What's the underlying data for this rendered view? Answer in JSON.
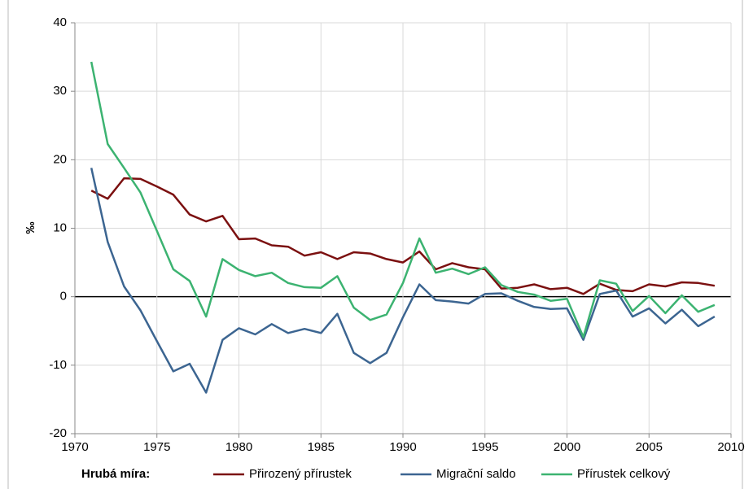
{
  "chart_data": {
    "type": "line",
    "y_label": "‰",
    "legend_title": "Hrubá míra:",
    "x": [
      1971,
      1972,
      1973,
      1974,
      1975,
      1976,
      1977,
      1978,
      1979,
      1980,
      1981,
      1982,
      1983,
      1984,
      1985,
      1986,
      1987,
      1988,
      1989,
      1990,
      1991,
      1992,
      1993,
      1994,
      1995,
      1996,
      1997,
      1998,
      1999,
      2000,
      2001,
      2002,
      2003,
      2004,
      2005,
      2006,
      2007,
      2008,
      2009
    ],
    "series": [
      {
        "name": "Přirozený přírustek",
        "color": "#7b1010",
        "values": [
          15.5,
          14.3,
          17.3,
          17.2,
          16.1,
          14.9,
          12.0,
          11.0,
          11.8,
          8.4,
          8.5,
          7.5,
          7.3,
          6.0,
          6.5,
          5.5,
          6.5,
          6.3,
          5.5,
          5.0,
          6.6,
          4.0,
          4.9,
          4.3,
          4.0,
          1.2,
          1.3,
          1.8,
          1.1,
          1.3,
          0.4,
          1.9,
          1.0,
          0.8,
          1.8,
          1.5,
          2.1,
          2.0,
          1.6
        ]
      },
      {
        "name": "Migrační saldo",
        "color": "#3c6591",
        "values": [
          18.8,
          8.0,
          1.5,
          -2.0,
          -6.5,
          -10.9,
          -9.8,
          -14.0,
          -6.3,
          -4.6,
          -5.5,
          -4.0,
          -5.3,
          -4.7,
          -5.3,
          -2.5,
          -8.2,
          -9.7,
          -8.2,
          -3.0,
          1.8,
          -0.5,
          -0.7,
          -1.0,
          0.4,
          0.5,
          -0.6,
          -1.5,
          -1.8,
          -1.7,
          -6.3,
          0.4,
          0.9,
          -2.9,
          -1.7,
          -3.9,
          -1.9,
          -4.3,
          -2.9
        ]
      },
      {
        "name": "Přírustek celkový",
        "color": "#3cb371",
        "values": [
          34.3,
          22.3,
          18.8,
          15.2,
          9.6,
          4.0,
          2.3,
          -2.9,
          5.5,
          3.9,
          3.0,
          3.5,
          2.0,
          1.4,
          1.3,
          3.0,
          -1.6,
          -3.4,
          -2.6,
          2.0,
          8.5,
          3.5,
          4.1,
          3.3,
          4.3,
          1.7,
          0.7,
          0.3,
          -0.6,
          -0.3,
          -5.9,
          2.4,
          1.9,
          -2.1,
          0.1,
          -2.4,
          0.2,
          -2.2,
          -1.2
        ]
      }
    ],
    "xlim": [
      1970,
      2010
    ],
    "xticks": [
      1970,
      1975,
      1980,
      1985,
      1990,
      1995,
      2000,
      2005,
      2010
    ],
    "ylim": [
      -20,
      40
    ],
    "yticks": [
      -20,
      -10,
      0,
      10,
      20,
      30,
      40
    ],
    "grid": true
  }
}
